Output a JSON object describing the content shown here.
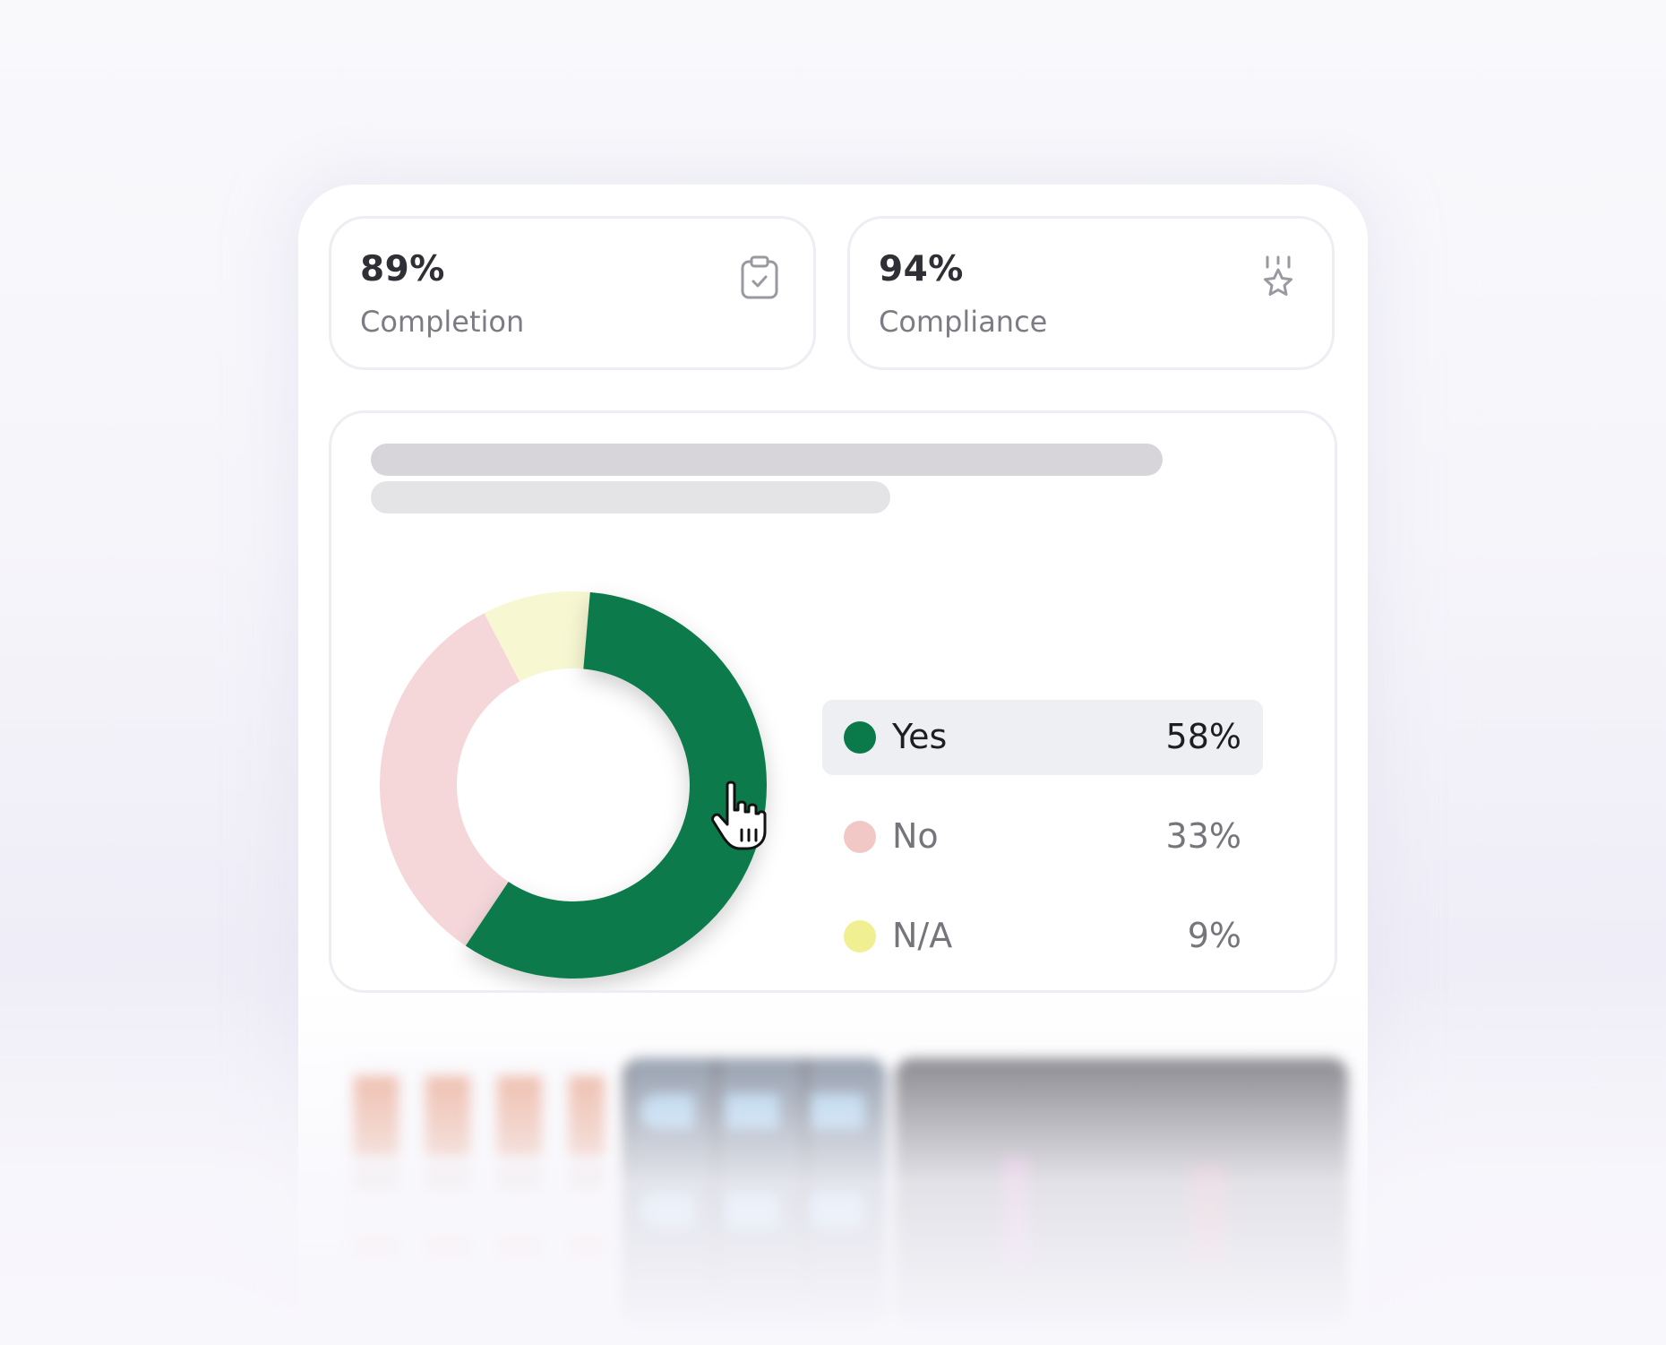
{
  "stats": [
    {
      "value": "89%",
      "label": "Completion",
      "icon": "clipboard-check-icon"
    },
    {
      "value": "94%",
      "label": "Compliance",
      "icon": "award-ribbon-icon"
    }
  ],
  "chart_data": {
    "type": "pie",
    "style": "donut",
    "categories": [
      "Yes",
      "No",
      "N/A"
    ],
    "values": [
      58,
      33,
      9
    ],
    "labels": [
      "58%",
      "33%",
      "9%"
    ],
    "colors": [
      "#0b7a4b",
      "#f5d7da",
      "#f7f7d2"
    ],
    "dot_colors": [
      "#0b7a4b",
      "#f2c8c6",
      "#f0ef92"
    ],
    "start_angle_deg": 5,
    "active_index": 0,
    "legend_placement": "right"
  },
  "colors": {
    "accent": "#0b7a4b",
    "card_border": "#ededf3",
    "skeleton": "#d7d5d9"
  }
}
